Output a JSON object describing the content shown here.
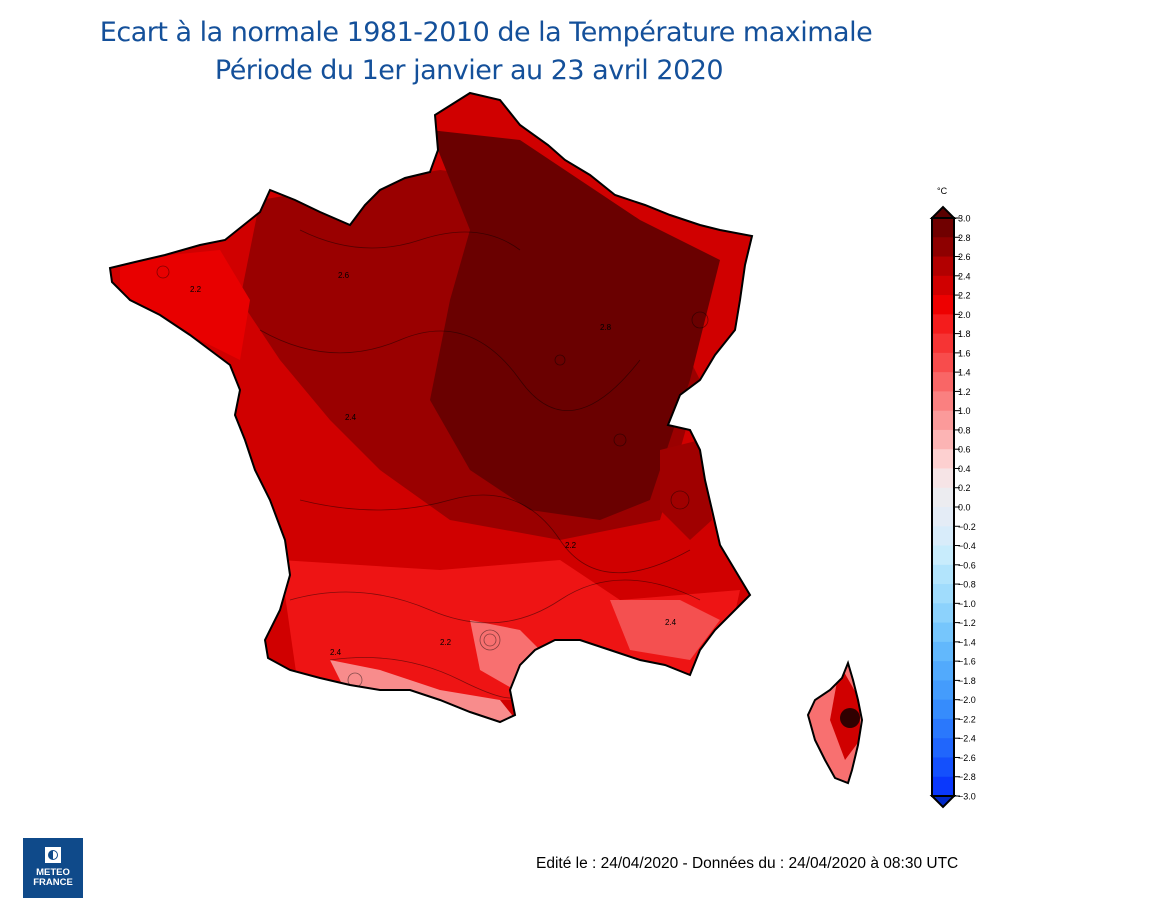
{
  "title": {
    "line1": "Ecart à la normale 1981-2010 de la Température maximale",
    "line2": "Période du 1er janvier au 23 avril 2020"
  },
  "legend": {
    "unit": "°C",
    "ticks": [
      "3.0",
      "2.8",
      "2.6",
      "2.4",
      "2.2",
      "2.0",
      "1.8",
      "1.6",
      "1.4",
      "1.2",
      "1.0",
      "0.8",
      "0.6",
      "0.4",
      "0.2",
      "0.0",
      "−0.2",
      "−0.4",
      "−0.6",
      "−0.8",
      "−1.0",
      "−1.2",
      "−1.4",
      "−1.6",
      "−1.8",
      "−2.0",
      "−2.2",
      "−2.4",
      "−2.6",
      "−2.8",
      "−3.0"
    ],
    "colors": [
      "#700000",
      "#8e0000",
      "#b20000",
      "#d00000",
      "#ee0000",
      "#f41c1c",
      "#f63434",
      "#f84c4c",
      "#f96666",
      "#fa8080",
      "#fb9a9a",
      "#fcb4b4",
      "#fdd0d0",
      "#f6e4e6",
      "#ececf0",
      "#e4ecf6",
      "#d8ecfa",
      "#c8ecfc",
      "#b2e4fc",
      "#a0dcfc",
      "#8cd2fc",
      "#76c6fc",
      "#62b8fc",
      "#52aafc",
      "#449cfc",
      "#368cfc",
      "#2a78fc",
      "#2066fc",
      "#1450fc",
      "#0a38fc"
    ],
    "top_arrow_color": "#5a0000",
    "bottom_arrow_color": "#0028c8"
  },
  "footer": "Edité le : 24/04/2020 - Données du : 24/04/2020 à 08:30 UTC",
  "logo": {
    "line1": "METEO",
    "line2": "FRANCE"
  },
  "map_labels": [
    "2.2",
    "2.4",
    "2.6",
    "2.8",
    "2.4",
    "2.2",
    "2.4",
    "2.2"
  ]
}
